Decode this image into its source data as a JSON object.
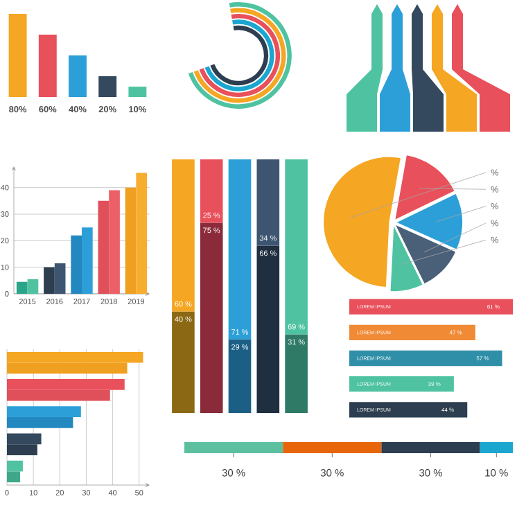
{
  "chart_data": [
    {
      "type": "bar",
      "categories": [
        null,
        null,
        null,
        null,
        null
      ],
      "values": [
        80,
        60,
        40,
        20,
        10
      ],
      "value_labels": [
        "80%",
        "60%",
        "40%",
        "20%",
        "10%"
      ],
      "colors": [
        "#f5a623",
        "#e8505b",
        "#2d9fd8",
        "#34495e",
        "#4fc3a1"
      ]
    },
    {
      "type": "bar",
      "categories": [
        "2015",
        "2016",
        "2017",
        "2018",
        "2019"
      ],
      "series": [
        {
          "colors": [
            "#2aa58a",
            "#2c3e50",
            "#2388c0",
            "#e0505b",
            "#f0a020"
          ],
          "values": [
            4.5,
            10,
            22,
            35,
            40
          ]
        },
        {
          "colors": [
            "#4fc3a1",
            "#3d5570",
            "#2d9fd8",
            "#ec5f68",
            "#f7ad2e"
          ],
          "values": [
            5.5,
            11.5,
            25,
            39,
            45.5
          ]
        }
      ],
      "ylim": [
        0,
        48
      ],
      "yticks": [
        0,
        10,
        20,
        30,
        40
      ],
      "grid": "y"
    },
    {
      "type": "bar",
      "stacked": true,
      "categories": [
        null,
        null,
        null,
        null,
        null
      ],
      "series": [
        {
          "colors": [
            "#8b6914",
            "#8b2a3a",
            "#1b5f85",
            "#1f2f40",
            "#2f7a66"
          ],
          "values": [
            40,
            75,
            29,
            66,
            31
          ],
          "value_labels": [
            "40 %",
            "75 %",
            "29 %",
            "66 %",
            "31 %"
          ]
        },
        {
          "colors": [
            "#f5a623",
            "#e8505b",
            "#2d9fd8",
            "#3d5570",
            "#4fc3a1"
          ],
          "values": [
            60,
            25,
            71,
            34,
            69
          ],
          "value_labels": [
            "60 %",
            "25 %",
            "71 %",
            "34 %",
            "69 %"
          ]
        }
      ]
    },
    {
      "type": "pie",
      "categories": [
        null,
        null,
        null,
        null,
        null
      ],
      "values": [
        52,
        15,
        14,
        11,
        8
      ],
      "value_labels": [
        "%",
        "%",
        "%",
        "%",
        "%"
      ],
      "colors": [
        "#f5a623",
        "#e8505b",
        "#2d9fd8",
        "#4a6079",
        "#4fc3a1"
      ]
    },
    {
      "type": "bar",
      "orientation": "horizontal",
      "categories": [
        "LOREM IPSUM",
        "LOREM IPSUM",
        "LOREM IPSUM",
        "LOREM IPSUM",
        "LOREM IPSUM"
      ],
      "values": [
        61,
        47,
        57,
        39,
        44
      ],
      "value_labels": [
        "61 %",
        "47 %",
        "57 %",
        "39 %",
        "44 %"
      ],
      "colors": [
        "#e8505b",
        "#f08a35",
        "#2f8fa8",
        "#4fc3a1",
        "#2c3e50"
      ]
    },
    {
      "type": "bar",
      "orientation": "horizontal",
      "categories": [
        null,
        null,
        null,
        null,
        null
      ],
      "series": [
        {
          "colors": [
            "#f5a623",
            "#e8505b",
            "#2d9fd8",
            "#34495e",
            "#4fc3a1"
          ],
          "values": [
            51.5,
            44.5,
            28,
            13,
            6
          ]
        },
        {
          "colors": [
            "#f0a020",
            "#e0505b",
            "#2388c0",
            "#2c3e50",
            "#3fa88a"
          ],
          "values": [
            45.5,
            39,
            25,
            11.5,
            5
          ]
        }
      ],
      "xlim": [
        0,
        54
      ],
      "xticks": [
        0,
        10,
        20,
        30,
        40,
        50
      ],
      "grid": "x",
      "tick_labels": "x"
    },
    {
      "type": "bar",
      "stacked": true,
      "orientation": "horizontal",
      "categories": [
        null
      ],
      "series": [
        {
          "color": "#5cc0a0",
          "values": [
            30
          ],
          "value_labels": [
            "30 %"
          ]
        },
        {
          "color": "#e8650a",
          "values": [
            30
          ],
          "value_labels": [
            "30 %"
          ]
        },
        {
          "color": "#2c3e50",
          "values": [
            30
          ],
          "value_labels": [
            "30 %"
          ]
        },
        {
          "color": "#1ba6d0",
          "values": [
            10
          ],
          "value_labels": [
            "10 %"
          ]
        }
      ]
    }
  ]
}
